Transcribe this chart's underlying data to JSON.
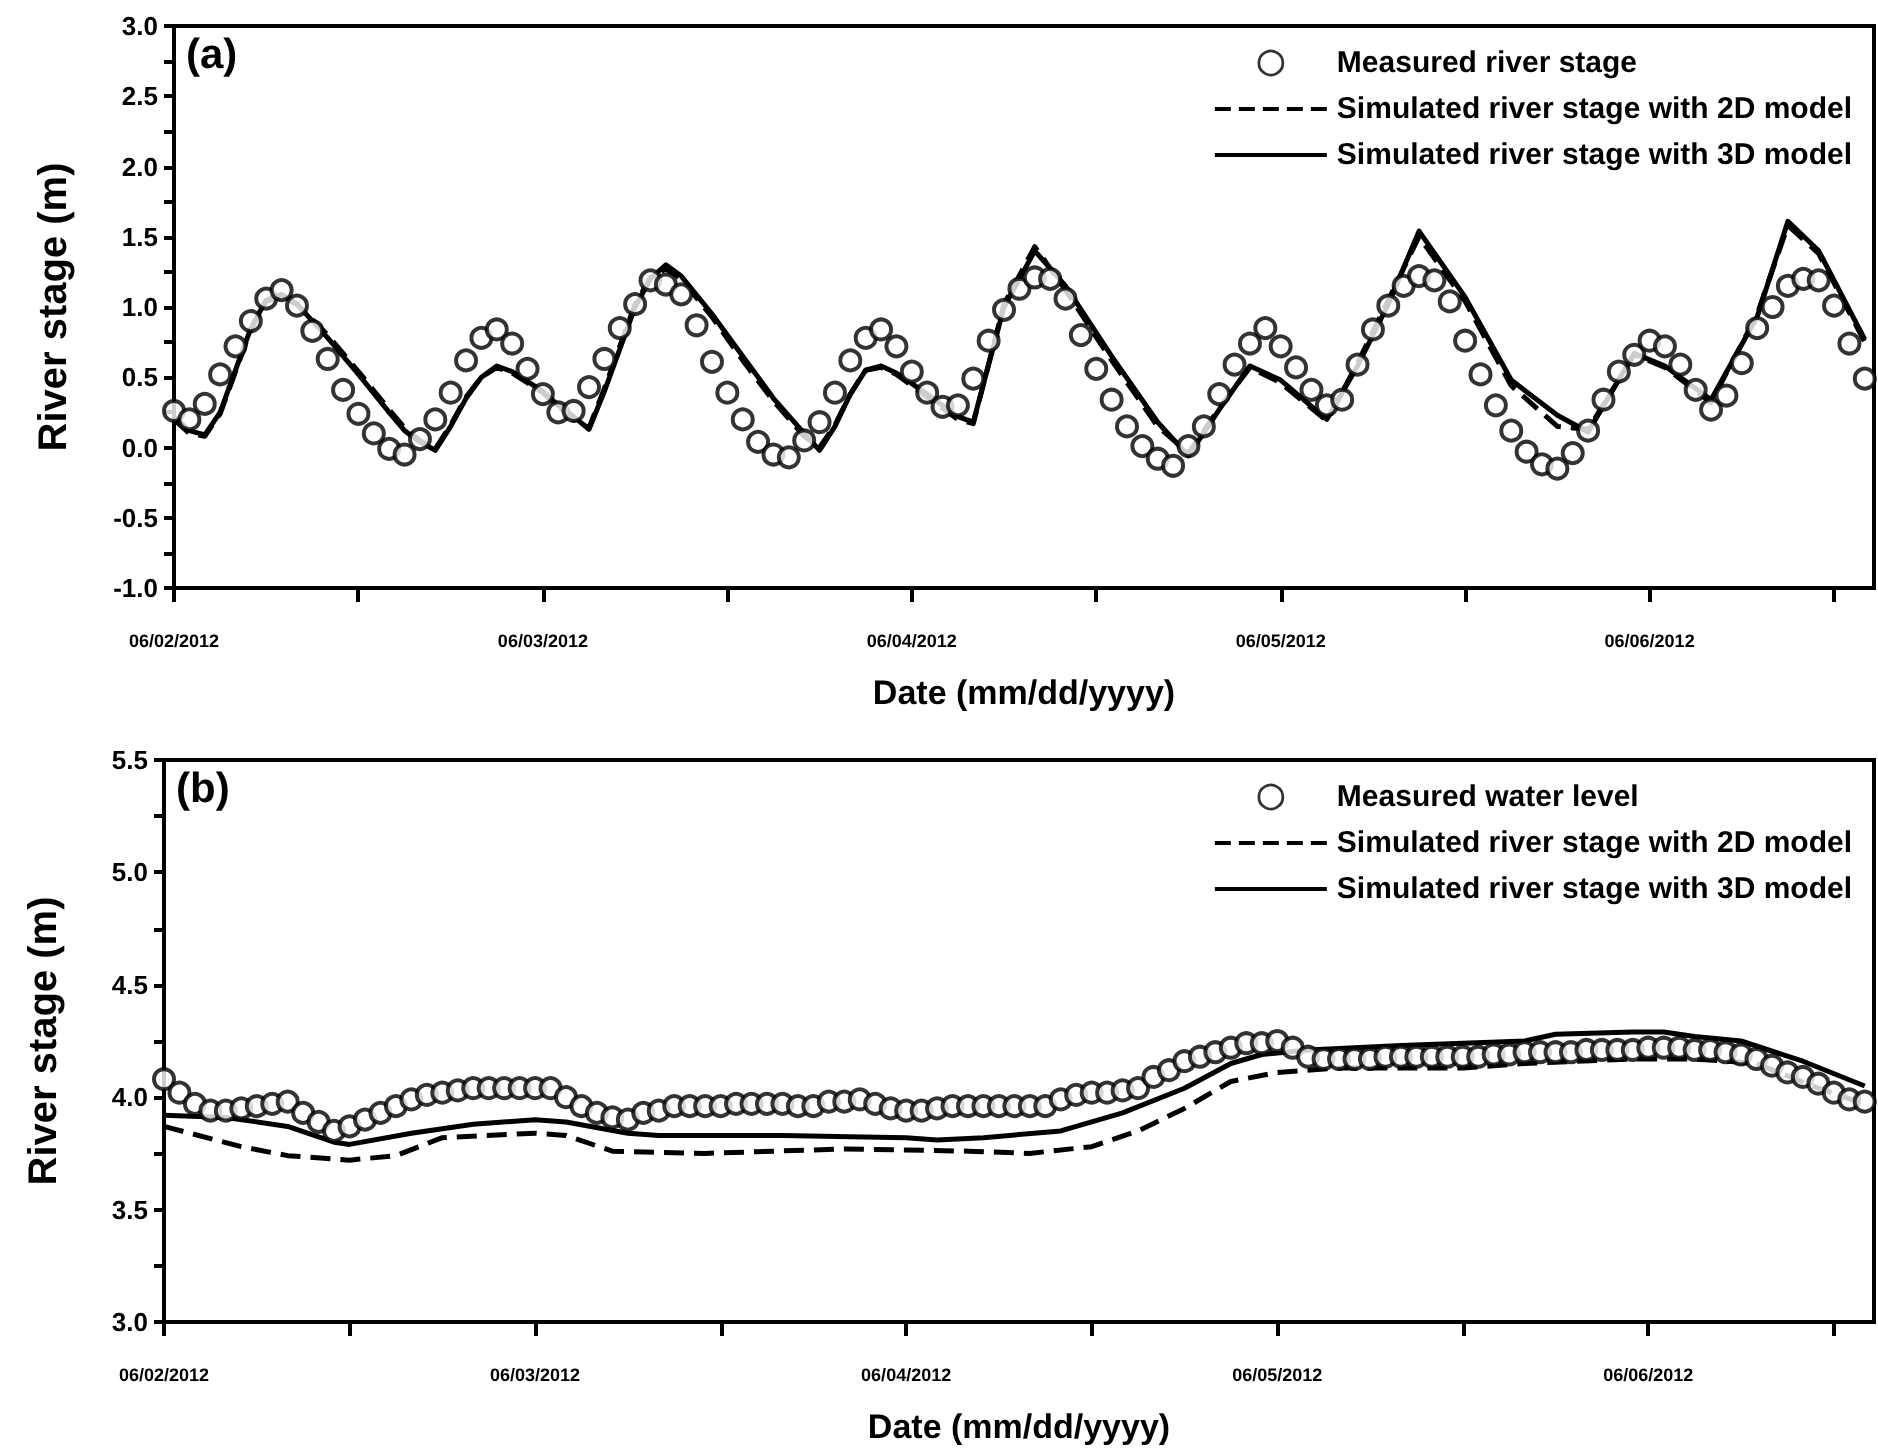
{
  "chart_data": [
    {
      "type": "line",
      "annotations": [
        "(a)"
      ],
      "xlabel": "Date (mm/dd/yyyy)",
      "ylabel": "River stage (m)",
      "legend": "top right",
      "grid": false,
      "xlim": [
        "2012-06-02T00:00",
        "2012-06-06T14:36"
      ],
      "xticks": [
        {
          "value": "2012-06-02T00:00",
          "label": "06/02/2012"
        },
        {
          "value": "2012-06-02T12:00",
          "label": null
        },
        {
          "value": "2012-06-03T00:00",
          "label": "06/03/2012"
        },
        {
          "value": "2012-06-03T12:00",
          "label": null
        },
        {
          "value": "2012-06-04T00:00",
          "label": "06/04/2012"
        },
        {
          "value": "2012-06-04T12:00",
          "label": null
        },
        {
          "value": "2012-06-05T00:00",
          "label": "06/05/2012"
        },
        {
          "value": "2012-06-05T12:00",
          "label": null
        },
        {
          "value": "2012-06-06T00:00",
          "label": "06/06/2012"
        },
        {
          "value": "2012-06-06T12:00",
          "label": null
        }
      ],
      "ylim": [
        -1,
        3
      ],
      "yticks": [
        {
          "value": -1,
          "label": "-1.0"
        },
        {
          "value": -0.75,
          "label": null
        },
        {
          "value": -0.5,
          "label": "-0.5"
        },
        {
          "value": -0.25,
          "label": null
        },
        {
          "value": 0,
          "label": "0.0"
        },
        {
          "value": 0.25,
          "label": null
        },
        {
          "value": 0.5,
          "label": "0.5"
        },
        {
          "value": 0.75,
          "label": null
        },
        {
          "value": 1,
          "label": "1.0"
        },
        {
          "value": 1.25,
          "label": null
        },
        {
          "value": 1.5,
          "label": "1.5"
        },
        {
          "value": 1.75,
          "label": null
        },
        {
          "value": 2,
          "label": "2.0"
        },
        {
          "value": 2.25,
          "label": null
        },
        {
          "value": 2.5,
          "label": "2.5"
        },
        {
          "value": 2.75,
          "label": null
        },
        {
          "value": 3,
          "label": "3.0"
        }
      ],
      "x": [
        "2012-06-02T00:00",
        "2012-06-02T01:00",
        "2012-06-02T02:00",
        "2012-06-02T03:00",
        "2012-06-02T04:00",
        "2012-06-02T05:00",
        "2012-06-02T06:00",
        "2012-06-02T07:00",
        "2012-06-02T08:00",
        "2012-06-02T09:00",
        "2012-06-02T10:00",
        "2012-06-02T11:00",
        "2012-06-02T12:00",
        "2012-06-02T13:00",
        "2012-06-02T14:00",
        "2012-06-02T15:00",
        "2012-06-02T16:00",
        "2012-06-02T17:00",
        "2012-06-02T18:00",
        "2012-06-02T19:00",
        "2012-06-02T20:00",
        "2012-06-02T21:00",
        "2012-06-02T22:00",
        "2012-06-02T23:00",
        "2012-06-03T00:00",
        "2012-06-03T01:00",
        "2012-06-03T02:00",
        "2012-06-03T03:00",
        "2012-06-03T04:00",
        "2012-06-03T05:00",
        "2012-06-03T06:00",
        "2012-06-03T07:00",
        "2012-06-03T08:00",
        "2012-06-03T09:00",
        "2012-06-03T10:00",
        "2012-06-03T11:00",
        "2012-06-03T12:00",
        "2012-06-03T13:00",
        "2012-06-03T14:00",
        "2012-06-03T15:00",
        "2012-06-03T16:00",
        "2012-06-03T17:00",
        "2012-06-03T18:00",
        "2012-06-03T19:00",
        "2012-06-03T20:00",
        "2012-06-03T21:00",
        "2012-06-03T22:00",
        "2012-06-03T23:00",
        "2012-06-04T00:00",
        "2012-06-04T01:00",
        "2012-06-04T02:00",
        "2012-06-04T03:00",
        "2012-06-04T04:00",
        "2012-06-04T05:00",
        "2012-06-04T06:00",
        "2012-06-04T07:00",
        "2012-06-04T08:00",
        "2012-06-04T09:00",
        "2012-06-04T10:00",
        "2012-06-04T11:00",
        "2012-06-04T12:00",
        "2012-06-04T13:00",
        "2012-06-04T14:00",
        "2012-06-04T15:00",
        "2012-06-04T16:00",
        "2012-06-04T17:00",
        "2012-06-04T18:00",
        "2012-06-04T19:00",
        "2012-06-04T20:00",
        "2012-06-04T21:00",
        "2012-06-04T22:00",
        "2012-06-04T23:00",
        "2012-06-05T00:00",
        "2012-06-05T01:00",
        "2012-06-05T02:00",
        "2012-06-05T03:00",
        "2012-06-05T04:00",
        "2012-06-05T05:00",
        "2012-06-05T06:00",
        "2012-06-05T07:00",
        "2012-06-05T08:00",
        "2012-06-05T09:00",
        "2012-06-05T10:00",
        "2012-06-05T11:00",
        "2012-06-05T12:00",
        "2012-06-05T13:00",
        "2012-06-05T14:00",
        "2012-06-05T15:00",
        "2012-06-05T16:00",
        "2012-06-05T17:00",
        "2012-06-05T18:00",
        "2012-06-05T19:00",
        "2012-06-05T20:00",
        "2012-06-05T21:00",
        "2012-06-05T22:00",
        "2012-06-05T23:00",
        "2012-06-06T00:00",
        "2012-06-06T01:00",
        "2012-06-06T02:00",
        "2012-06-06T03:00",
        "2012-06-06T04:00",
        "2012-06-06T05:00",
        "2012-06-06T06:00",
        "2012-06-06T07:00",
        "2012-06-06T08:00",
        "2012-06-06T09:00",
        "2012-06-06T10:00",
        "2012-06-06T11:00",
        "2012-06-06T12:00",
        "2012-06-06T13:00",
        "2012-06-06T14:00"
      ],
      "series": [
        {
          "name": "Measured river stage",
          "type": "scatter",
          "marker": "circle",
          "color": "#000000",
          "values": [
            0.26,
            0.2,
            0.31,
            0.52,
            0.72,
            0.9,
            1.06,
            1.12,
            1.01,
            0.83,
            0.63,
            0.41,
            0.24,
            0.1,
            -0.01,
            -0.05,
            0.06,
            0.2,
            0.39,
            0.62,
            0.78,
            0.84,
            0.74,
            0.56,
            0.38,
            0.25,
            0.26,
            0.43,
            0.63,
            0.85,
            1.02,
            1.19,
            1.16,
            1.09,
            0.87,
            0.61,
            0.39,
            0.2,
            0.04,
            -0.05,
            -0.07,
            0.05,
            0.18,
            0.39,
            0.62,
            0.78,
            0.84,
            0.72,
            0.54,
            0.39,
            0.29,
            0.3,
            0.49,
            0.76,
            0.98,
            1.13,
            1.21,
            1.2,
            1.06,
            0.8,
            0.56,
            0.34,
            0.15,
            0.01,
            -0.08,
            -0.13,
            0.01,
            0.15,
            0.38,
            0.59,
            0.74,
            0.85,
            0.72,
            0.57,
            0.41,
            0.3,
            0.34,
            0.59,
            0.84,
            1.01,
            1.15,
            1.22,
            1.19,
            1.04,
            0.76,
            0.52,
            0.3,
            0.12,
            -0.03,
            -0.12,
            -0.15,
            -0.04,
            0.12,
            0.34,
            0.54,
            0.66,
            0.76,
            0.72,
            0.59,
            0.41,
            0.27,
            0.37,
            0.6,
            0.85,
            1.0,
            1.15,
            1.2,
            1.19,
            1.01,
            0.74,
            0.49
          ]
        },
        {
          "name": "Simulated river stage with 2D model",
          "marker": "none",
          "line_style": "dashed",
          "color": "#000000",
          "x": [
            "2012-06-02T00:00",
            "2012-06-02T01:00",
            "2012-06-02T02:00",
            "2012-06-02T03:00",
            "2012-06-02T04:00",
            "2012-06-02T05:00",
            "2012-06-02T06:00",
            "2012-06-02T07:00",
            "2012-06-02T08:00",
            "2012-06-02T10:00",
            "2012-06-02T12:00",
            "2012-06-02T14:00",
            "2012-06-02T15:00",
            "2012-06-02T16:00",
            "2012-06-02T17:00",
            "2012-06-02T18:00",
            "2012-06-02T19:00",
            "2012-06-02T20:00",
            "2012-06-02T21:00",
            "2012-06-02T22:00",
            "2012-06-03T00:00",
            "2012-06-03T01:00",
            "2012-06-03T02:00",
            "2012-06-03T03:00",
            "2012-06-03T04:00",
            "2012-06-03T05:00",
            "2012-06-03T06:00",
            "2012-06-03T07:00",
            "2012-06-03T08:00",
            "2012-06-03T09:00",
            "2012-06-03T11:00",
            "2012-06-03T13:00",
            "2012-06-03T15:00",
            "2012-06-03T17:00",
            "2012-06-03T18:00",
            "2012-06-03T19:00",
            "2012-06-03T20:00",
            "2012-06-03T21:00",
            "2012-06-03T22:00",
            "2012-06-03T23:00",
            "2012-06-04T01:00",
            "2012-06-04T03:00",
            "2012-06-04T04:00",
            "2012-06-04T06:00",
            "2012-06-04T08:00",
            "2012-06-04T10:00",
            "2012-06-04T13:00",
            "2012-06-04T16:00",
            "2012-06-04T18:00",
            "2012-06-04T20:00",
            "2012-06-04T22:00",
            "2012-06-05T00:00",
            "2012-06-05T03:00",
            "2012-06-05T05:00",
            "2012-06-05T07:00",
            "2012-06-05T09:00",
            "2012-06-05T12:00",
            "2012-06-05T15:00",
            "2012-06-05T18:00",
            "2012-06-05T20:00",
            "2012-06-05T23:00",
            "2012-06-06T01:00",
            "2012-06-06T04:00",
            "2012-06-06T07:00",
            "2012-06-06T09:00",
            "2012-06-06T11:00",
            "2012-06-06T14:00"
          ],
          "values": [
            0.2,
            0.1,
            0.08,
            0.24,
            0.54,
            0.84,
            1.04,
            1.07,
            1.02,
            0.8,
            0.54,
            0.27,
            0.14,
            0.05,
            -0.01,
            0.16,
            0.36,
            0.5,
            0.57,
            0.53,
            0.39,
            0.29,
            0.2,
            0.14,
            0.42,
            0.72,
            1.02,
            1.21,
            1.27,
            1.2,
            0.93,
            0.62,
            0.33,
            0.08,
            0.0,
            0.16,
            0.38,
            0.55,
            0.57,
            0.52,
            0.36,
            0.2,
            0.17,
            1.02,
            1.43,
            1.12,
            0.62,
            0.15,
            -0.04,
            0.28,
            0.57,
            0.46,
            0.19,
            0.6,
            1.05,
            1.5,
            1.04,
            0.44,
            0.15,
            0.13,
            0.66,
            0.57,
            0.32,
            0.95,
            1.58,
            1.38,
            0.75
          ]
        },
        {
          "name": "Simulated river stage with 3D model",
          "marker": "none",
          "line_style": "solid",
          "color": "#000000",
          "x": [
            "2012-06-02T00:00",
            "2012-06-02T01:00",
            "2012-06-02T02:00",
            "2012-06-02T03:00",
            "2012-06-02T04:00",
            "2012-06-02T05:00",
            "2012-06-02T06:00",
            "2012-06-02T07:00",
            "2012-06-02T08:00",
            "2012-06-02T10:00",
            "2012-06-02T12:00",
            "2012-06-02T14:00",
            "2012-06-02T15:00",
            "2012-06-02T16:00",
            "2012-06-02T17:00",
            "2012-06-02T18:00",
            "2012-06-02T19:00",
            "2012-06-02T20:00",
            "2012-06-02T21:00",
            "2012-06-02T22:00",
            "2012-06-03T00:00",
            "2012-06-03T01:00",
            "2012-06-03T02:00",
            "2012-06-03T03:00",
            "2012-06-03T04:00",
            "2012-06-03T05:00",
            "2012-06-03T06:00",
            "2012-06-03T07:00",
            "2012-06-03T08:00",
            "2012-06-03T09:00",
            "2012-06-03T11:00",
            "2012-06-03T13:00",
            "2012-06-03T15:00",
            "2012-06-03T17:00",
            "2012-06-03T18:00",
            "2012-06-03T19:00",
            "2012-06-03T20:00",
            "2012-06-03T21:00",
            "2012-06-03T22:00",
            "2012-06-03T23:00",
            "2012-06-04T01:00",
            "2012-06-04T03:00",
            "2012-06-04T04:00",
            "2012-06-04T06:00",
            "2012-06-04T08:00",
            "2012-06-04T10:00",
            "2012-06-04T13:00",
            "2012-06-04T16:00",
            "2012-06-04T18:00",
            "2012-06-04T20:00",
            "2012-06-04T22:00",
            "2012-06-05T00:00",
            "2012-06-05T03:00",
            "2012-06-05T05:00",
            "2012-06-05T07:00",
            "2012-06-05T09:00",
            "2012-06-05T12:00",
            "2012-06-05T15:00",
            "2012-06-05T18:00",
            "2012-06-05T20:00",
            "2012-06-05T23:00",
            "2012-06-06T01:00",
            "2012-06-06T04:00",
            "2012-06-06T07:00",
            "2012-06-06T09:00",
            "2012-06-06T11:00",
            "2012-06-06T14:00"
          ],
          "values": [
            0.22,
            0.12,
            0.09,
            0.25,
            0.55,
            0.85,
            1.05,
            1.09,
            1.02,
            0.78,
            0.52,
            0.25,
            0.12,
            0.04,
            -0.02,
            0.15,
            0.35,
            0.5,
            0.58,
            0.54,
            0.4,
            0.3,
            0.22,
            0.13,
            0.4,
            0.7,
            1.0,
            1.2,
            1.3,
            1.22,
            0.95,
            0.65,
            0.35,
            0.1,
            -0.02,
            0.15,
            0.38,
            0.55,
            0.58,
            0.53,
            0.38,
            0.22,
            0.18,
            1.0,
            1.4,
            1.15,
            0.65,
            0.18,
            -0.06,
            0.27,
            0.58,
            0.48,
            0.2,
            0.58,
            1.02,
            1.54,
            1.07,
            0.48,
            0.23,
            0.11,
            0.67,
            0.58,
            0.34,
            0.93,
            1.61,
            1.4,
            0.77
          ]
        }
      ]
    },
    {
      "type": "line",
      "annotations": [
        "(b)"
      ],
      "xlabel": "Date (mm/dd/yyyy)",
      "ylabel": "River stage (m)",
      "legend": "top right",
      "grid": false,
      "xlim": [
        "2012-06-02T00:00",
        "2012-06-06T14:36"
      ],
      "xticks": [
        {
          "value": "2012-06-02T00:00",
          "label": "06/02/2012"
        },
        {
          "value": "2012-06-02T12:00",
          "label": null
        },
        {
          "value": "2012-06-03T00:00",
          "label": "06/03/2012"
        },
        {
          "value": "2012-06-03T12:00",
          "label": null
        },
        {
          "value": "2012-06-04T00:00",
          "label": "06/04/2012"
        },
        {
          "value": "2012-06-04T12:00",
          "label": null
        },
        {
          "value": "2012-06-05T00:00",
          "label": "06/05/2012"
        },
        {
          "value": "2012-06-05T12:00",
          "label": null
        },
        {
          "value": "2012-06-06T00:00",
          "label": "06/06/2012"
        },
        {
          "value": "2012-06-06T12:00",
          "label": null
        }
      ],
      "ylim": [
        3,
        5.5
      ],
      "yticks": [
        {
          "value": 3,
          "label": "3.0"
        },
        {
          "value": 3.25,
          "label": null
        },
        {
          "value": 3.5,
          "label": "3.5"
        },
        {
          "value": 3.75,
          "label": null
        },
        {
          "value": 4,
          "label": "4.0"
        },
        {
          "value": 4.25,
          "label": null
        },
        {
          "value": 4.5,
          "label": "4.5"
        },
        {
          "value": 4.75,
          "label": null
        },
        {
          "value": 5,
          "label": "5.0"
        },
        {
          "value": 5.25,
          "label": null
        },
        {
          "value": 5.5,
          "label": "5.5"
        }
      ],
      "x": [
        "2012-06-02T00:00",
        "2012-06-02T01:00",
        "2012-06-02T02:00",
        "2012-06-02T03:00",
        "2012-06-02T04:00",
        "2012-06-02T05:00",
        "2012-06-02T06:00",
        "2012-06-02T07:00",
        "2012-06-02T08:00",
        "2012-06-02T09:00",
        "2012-06-02T10:00",
        "2012-06-02T11:00",
        "2012-06-02T12:00",
        "2012-06-02T13:00",
        "2012-06-02T14:00",
        "2012-06-02T15:00",
        "2012-06-02T16:00",
        "2012-06-02T17:00",
        "2012-06-02T18:00",
        "2012-06-02T19:00",
        "2012-06-02T20:00",
        "2012-06-02T21:00",
        "2012-06-02T22:00",
        "2012-06-02T23:00",
        "2012-06-03T00:00",
        "2012-06-03T01:00",
        "2012-06-03T02:00",
        "2012-06-03T03:00",
        "2012-06-03T04:00",
        "2012-06-03T05:00",
        "2012-06-03T06:00",
        "2012-06-03T07:00",
        "2012-06-03T08:00",
        "2012-06-03T09:00",
        "2012-06-03T10:00",
        "2012-06-03T11:00",
        "2012-06-03T12:00",
        "2012-06-03T13:00",
        "2012-06-03T14:00",
        "2012-06-03T15:00",
        "2012-06-03T16:00",
        "2012-06-03T17:00",
        "2012-06-03T18:00",
        "2012-06-03T19:00",
        "2012-06-03T20:00",
        "2012-06-03T21:00",
        "2012-06-03T22:00",
        "2012-06-03T23:00",
        "2012-06-04T00:00",
        "2012-06-04T01:00",
        "2012-06-04T02:00",
        "2012-06-04T03:00",
        "2012-06-04T04:00",
        "2012-06-04T05:00",
        "2012-06-04T06:00",
        "2012-06-04T07:00",
        "2012-06-04T08:00",
        "2012-06-04T09:00",
        "2012-06-04T10:00",
        "2012-06-04T11:00",
        "2012-06-04T12:00",
        "2012-06-04T13:00",
        "2012-06-04T14:00",
        "2012-06-04T15:00",
        "2012-06-04T16:00",
        "2012-06-04T17:00",
        "2012-06-04T18:00",
        "2012-06-04T19:00",
        "2012-06-04T20:00",
        "2012-06-04T21:00",
        "2012-06-04T22:00",
        "2012-06-04T23:00",
        "2012-06-05T00:00",
        "2012-06-05T01:00",
        "2012-06-05T02:00",
        "2012-06-05T03:00",
        "2012-06-05T04:00",
        "2012-06-05T05:00",
        "2012-06-05T06:00",
        "2012-06-05T07:00",
        "2012-06-05T08:00",
        "2012-06-05T09:00",
        "2012-06-05T10:00",
        "2012-06-05T11:00",
        "2012-06-05T12:00",
        "2012-06-05T13:00",
        "2012-06-05T14:00",
        "2012-06-05T15:00",
        "2012-06-05T16:00",
        "2012-06-05T17:00",
        "2012-06-05T18:00",
        "2012-06-05T19:00",
        "2012-06-05T20:00",
        "2012-06-05T21:00",
        "2012-06-05T22:00",
        "2012-06-05T23:00",
        "2012-06-06T00:00",
        "2012-06-06T01:00",
        "2012-06-06T02:00",
        "2012-06-06T03:00",
        "2012-06-06T04:00",
        "2012-06-06T05:00",
        "2012-06-06T06:00",
        "2012-06-06T07:00",
        "2012-06-06T08:00",
        "2012-06-06T09:00",
        "2012-06-06T10:00",
        "2012-06-06T11:00",
        "2012-06-06T12:00",
        "2012-06-06T13:00",
        "2012-06-06T14:00"
      ],
      "series": [
        {
          "name": "Measured water level",
          "type": "scatter",
          "marker": "circle",
          "color": "#000000",
          "values": [
            4.08,
            4.02,
            3.97,
            3.94,
            3.94,
            3.95,
            3.96,
            3.97,
            3.98,
            3.93,
            3.89,
            3.85,
            3.87,
            3.9,
            3.93,
            3.96,
            3.99,
            4.01,
            4.02,
            4.03,
            4.04,
            4.04,
            4.04,
            4.04,
            4.04,
            4.04,
            4.0,
            3.96,
            3.93,
            3.91,
            3.9,
            3.93,
            3.94,
            3.96,
            3.96,
            3.96,
            3.96,
            3.97,
            3.97,
            3.97,
            3.97,
            3.96,
            3.96,
            3.98,
            3.98,
            3.99,
            3.97,
            3.95,
            3.94,
            3.94,
            3.95,
            3.96,
            3.96,
            3.96,
            3.96,
            3.96,
            3.96,
            3.96,
            3.99,
            4.01,
            4.02,
            4.02,
            4.03,
            4.04,
            4.09,
            4.12,
            4.16,
            4.18,
            4.2,
            4.22,
            4.24,
            4.24,
            4.25,
            4.22,
            4.18,
            4.17,
            4.17,
            4.17,
            4.17,
            4.18,
            4.18,
            4.18,
            4.18,
            4.18,
            4.18,
            4.18,
            4.19,
            4.19,
            4.2,
            4.2,
            4.2,
            4.2,
            4.21,
            4.21,
            4.21,
            4.21,
            4.22,
            4.22,
            4.22,
            4.21,
            4.21,
            4.2,
            4.19,
            4.17,
            4.14,
            4.11,
            4.09,
            4.06,
            4.02,
            3.99,
            3.98
          ]
        },
        {
          "name": "Simulated river stage with 2D model",
          "marker": "none",
          "line_style": "dashed",
          "color": "#000000",
          "x": [
            "2012-06-02T00:00",
            "2012-06-02T05:00",
            "2012-06-02T08:00",
            "2012-06-02T12:00",
            "2012-06-02T15:00",
            "2012-06-02T18:00",
            "2012-06-03T00:00",
            "2012-06-03T02:00",
            "2012-06-03T05:00",
            "2012-06-03T11:00",
            "2012-06-03T20:00",
            "2012-06-04T04:00",
            "2012-06-04T08:00",
            "2012-06-04T12:00",
            "2012-06-04T15:00",
            "2012-06-04T18:00",
            "2012-06-04T21:00",
            "2012-06-05T00:00",
            "2012-06-05T04:00",
            "2012-06-05T12:00",
            "2012-06-05T16:00",
            "2012-06-05T23:00",
            "2012-06-06T03:00",
            "2012-06-06T07:00",
            "2012-06-06T11:00",
            "2012-06-06T14:00"
          ],
          "values": [
            3.87,
            3.78,
            3.74,
            3.72,
            3.74,
            3.82,
            3.84,
            3.83,
            3.76,
            3.75,
            3.77,
            3.76,
            3.75,
            3.78,
            3.85,
            3.95,
            4.07,
            4.11,
            4.13,
            4.13,
            4.15,
            4.17,
            4.17,
            4.15,
            4.04,
            3.97
          ]
        },
        {
          "name": "Simulated river stage with 3D model",
          "marker": "none",
          "line_style": "solid",
          "color": "#000000",
          "x": [
            "2012-06-02T00:00",
            "2012-06-02T04:00",
            "2012-06-02T08:00",
            "2012-06-02T11:00",
            "2012-06-02T12:00",
            "2012-06-02T16:00",
            "2012-06-02T20:00",
            "2012-06-03T00:00",
            "2012-06-03T02:00",
            "2012-06-03T06:00",
            "2012-06-03T08:00",
            "2012-06-03T16:00",
            "2012-06-04T00:00",
            "2012-06-04T02:00",
            "2012-06-04T05:00",
            "2012-06-04T10:00",
            "2012-06-04T14:00",
            "2012-06-04T18:00",
            "2012-06-04T21:00",
            "2012-06-04T23:00",
            "2012-06-05T02:00",
            "2012-06-05T08:00",
            "2012-06-05T12:00",
            "2012-06-05T16:00",
            "2012-06-05T18:00",
            "2012-06-05T23:00",
            "2012-06-06T01:00",
            "2012-06-06T03:00",
            "2012-06-06T06:00",
            "2012-06-06T10:00",
            "2012-06-06T14:00"
          ],
          "values": [
            3.92,
            3.91,
            3.87,
            3.8,
            3.79,
            3.84,
            3.88,
            3.9,
            3.89,
            3.84,
            3.83,
            3.83,
            3.82,
            3.81,
            3.82,
            3.85,
            3.93,
            4.04,
            4.15,
            4.19,
            4.21,
            4.23,
            4.24,
            4.25,
            4.28,
            4.29,
            4.29,
            4.27,
            4.25,
            4.16,
            4.05
          ]
        }
      ]
    }
  ]
}
